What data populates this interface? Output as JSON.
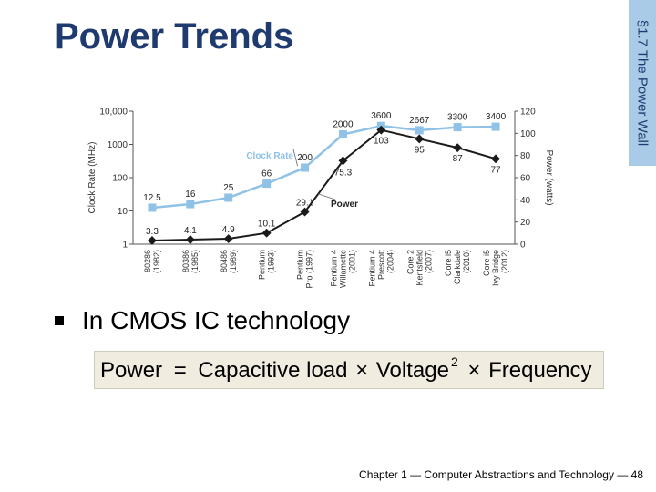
{
  "slide": {
    "title": "Power Trends",
    "side_tab": "§1.7 The Power Wall",
    "bullet": "In CMOS IC technology",
    "formula": {
      "power": "Power",
      "eq": "=",
      "cap": "Capacitive load",
      "times1": "×",
      "volt": "Voltage",
      "exp": "2",
      "times2": "×",
      "freq": "Frequency"
    },
    "footer": "Chapter 1 — Computer Abstractions and Technology — 48",
    "colors": {
      "title": "#1f3a6e",
      "side_tab_bg": "#a9cbe7",
      "formula_bg": "#f0ede0"
    }
  },
  "chart_data": {
    "type": "line",
    "categories": [
      [
        "80286",
        "(1982)"
      ],
      [
        "80386",
        "(1985)"
      ],
      [
        "80486",
        "(1989)"
      ],
      [
        "Pentium",
        "(1993)"
      ],
      [
        "Pentium",
        "Pro (1997)"
      ],
      [
        "Pentium 4",
        "Willamette",
        "(2001)"
      ],
      [
        "Pentium 4",
        "Prescott",
        "(2004)"
      ],
      [
        "Core 2",
        "Kentsfield",
        "(2007)"
      ],
      [
        "Core i5",
        "Clarkdale",
        "(2010)"
      ],
      [
        "Core i5",
        "Ivy Bridge",
        "(2012)"
      ]
    ],
    "series": [
      {
        "name": "Clock Rate",
        "axis": "left",
        "color": "#8fc2e6",
        "values": [
          12.5,
          16,
          25,
          66,
          200,
          2000,
          3600,
          2667,
          3300,
          3400
        ],
        "labels": [
          "12.5",
          "16",
          "25",
          "66",
          "200",
          "2000",
          "3600",
          "2667",
          "3300",
          "3400"
        ]
      },
      {
        "name": "Power",
        "axis": "right",
        "color": "#1a1a1a",
        "values": [
          3.3,
          4.1,
          4.9,
          10.1,
          29.1,
          75.3,
          103,
          95,
          87,
          77
        ],
        "labels": [
          "3.3",
          "4.1",
          "4.9",
          "10.1",
          "29.1",
          "75.3",
          "103",
          "95",
          "87",
          "77"
        ]
      }
    ],
    "left_axis": {
      "label": "Clock Rate (MHz)",
      "scale": "log",
      "ticks": [
        1,
        10,
        100,
        1000,
        10000
      ],
      "tick_labels": [
        "1",
        "10",
        "100",
        "1000",
        "10,000"
      ]
    },
    "right_axis": {
      "label": "Power (watts)",
      "scale": "linear",
      "ylim": [
        0,
        120
      ],
      "ticks": [
        0,
        20,
        40,
        60,
        80,
        100,
        120
      ],
      "tick_labels": [
        "0",
        "20",
        "40",
        "60",
        "80",
        "100",
        "120"
      ]
    },
    "grid": false
  }
}
